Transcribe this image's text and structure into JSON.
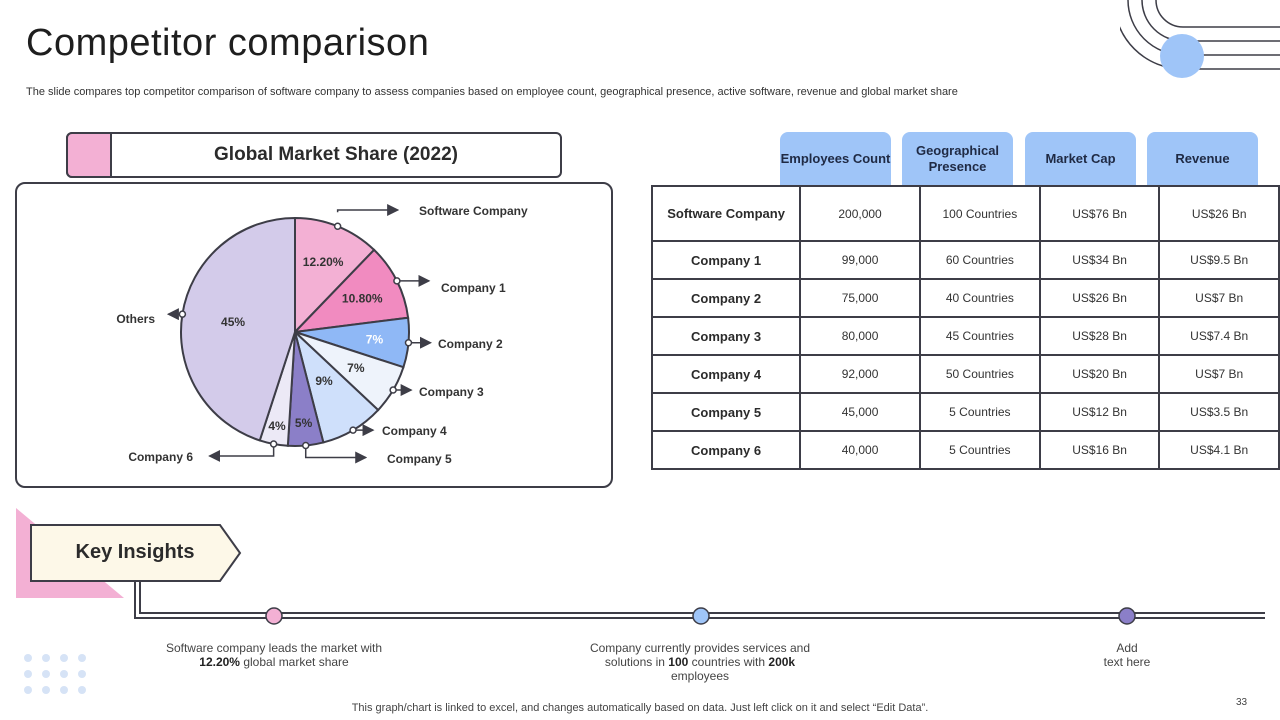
{
  "slide": {
    "title": "Competitor comparison",
    "subtitle": "The slide compares top competitor comparison of software company to assess companies based on employee count, geographical presence, active software, revenue and global market share",
    "footer": "This graph/chart is linked to excel,  and changes automatically based on data. Just left click on it and select “Edit Data”.",
    "page_number": "33"
  },
  "colors": {
    "pink_light": "#f3b0d4",
    "pink": "#f18bc0",
    "blue": "#8fb8f6",
    "pale_blue": "#eef3fb",
    "light_blue": "#cfe0fb",
    "purple": "#8b7fc8",
    "lavender_light": "#ece9f6",
    "lavender": "#d3cbea",
    "outline": "#3d3d47",
    "header_blue": "#9fc5f8",
    "insight_cream": "#fdf8e8"
  },
  "chart_data": {
    "type": "pie",
    "title": "Global Market Share (2022)",
    "slices": [
      {
        "name": "Software Company",
        "value": 12.2,
        "label": "12.20%",
        "color": "#f3b0d4"
      },
      {
        "name": "Company 1",
        "value": 10.8,
        "label": "10.80%",
        "color": "#f18bc0"
      },
      {
        "name": "Company 2",
        "value": 7,
        "label": "7%",
        "color": "#8fb8f6"
      },
      {
        "name": "Company 3",
        "value": 7,
        "label": "7%",
        "color": "#eef3fb"
      },
      {
        "name": "Company 4",
        "value": 9,
        "label": "9%",
        "color": "#cfe0fb"
      },
      {
        "name": "Company 5",
        "value": 5,
        "label": "5%",
        "color": "#8b7fc8"
      },
      {
        "name": "Company 6",
        "value": 4,
        "label": "4%",
        "color": "#ece9f6"
      },
      {
        "name": "Others",
        "value": 45,
        "label": "45%",
        "color": "#d3cbea"
      }
    ]
  },
  "table": {
    "headers": [
      "Employees Count",
      "Geographical Presence",
      "Market Cap",
      "Revenue"
    ],
    "rows": [
      {
        "label": "Software Company",
        "cells": [
          "200,000",
          "100 Countries",
          "US$76 Bn",
          "US$26 Bn"
        ]
      },
      {
        "label": "Company 1",
        "cells": [
          "99,000",
          "60 Countries",
          "US$34 Bn",
          "US$9.5 Bn"
        ]
      },
      {
        "label": "Company 2",
        "cells": [
          "75,000",
          "40 Countries",
          "US$26 Bn",
          "US$7 Bn"
        ]
      },
      {
        "label": "Company 3",
        "cells": [
          "80,000",
          "45 Countries",
          "US$28 Bn",
          "US$7.4 Bn"
        ]
      },
      {
        "label": "Company 4",
        "cells": [
          "92,000",
          "50 Countries",
          "US$20 Bn",
          "US$7 Bn"
        ]
      },
      {
        "label": "Company 5",
        "cells": [
          "45,000",
          "5 Countries",
          "US$12 Bn",
          "US$3.5 Bn"
        ]
      },
      {
        "label": "Company 6",
        "cells": [
          "40,000",
          "5 Countries",
          "US$16 Bn",
          "US$4.1 Bn"
        ]
      }
    ]
  },
  "insights": {
    "title": "Key Insights",
    "items": [
      {
        "pre": "Software company leads the market with",
        "bold": "12.20%",
        "post": "global market share",
        "dot_color": "#f3b0d4"
      },
      {
        "pre": "Company currently provides services and solutions in",
        "bold": "100",
        "mid": "countries with",
        "bold2": "200k",
        "post": "employees",
        "dot_color": "#9fc5f8"
      },
      {
        "pre": "Add",
        "post": "text here",
        "dot_color": "#8b7fc8"
      }
    ]
  }
}
